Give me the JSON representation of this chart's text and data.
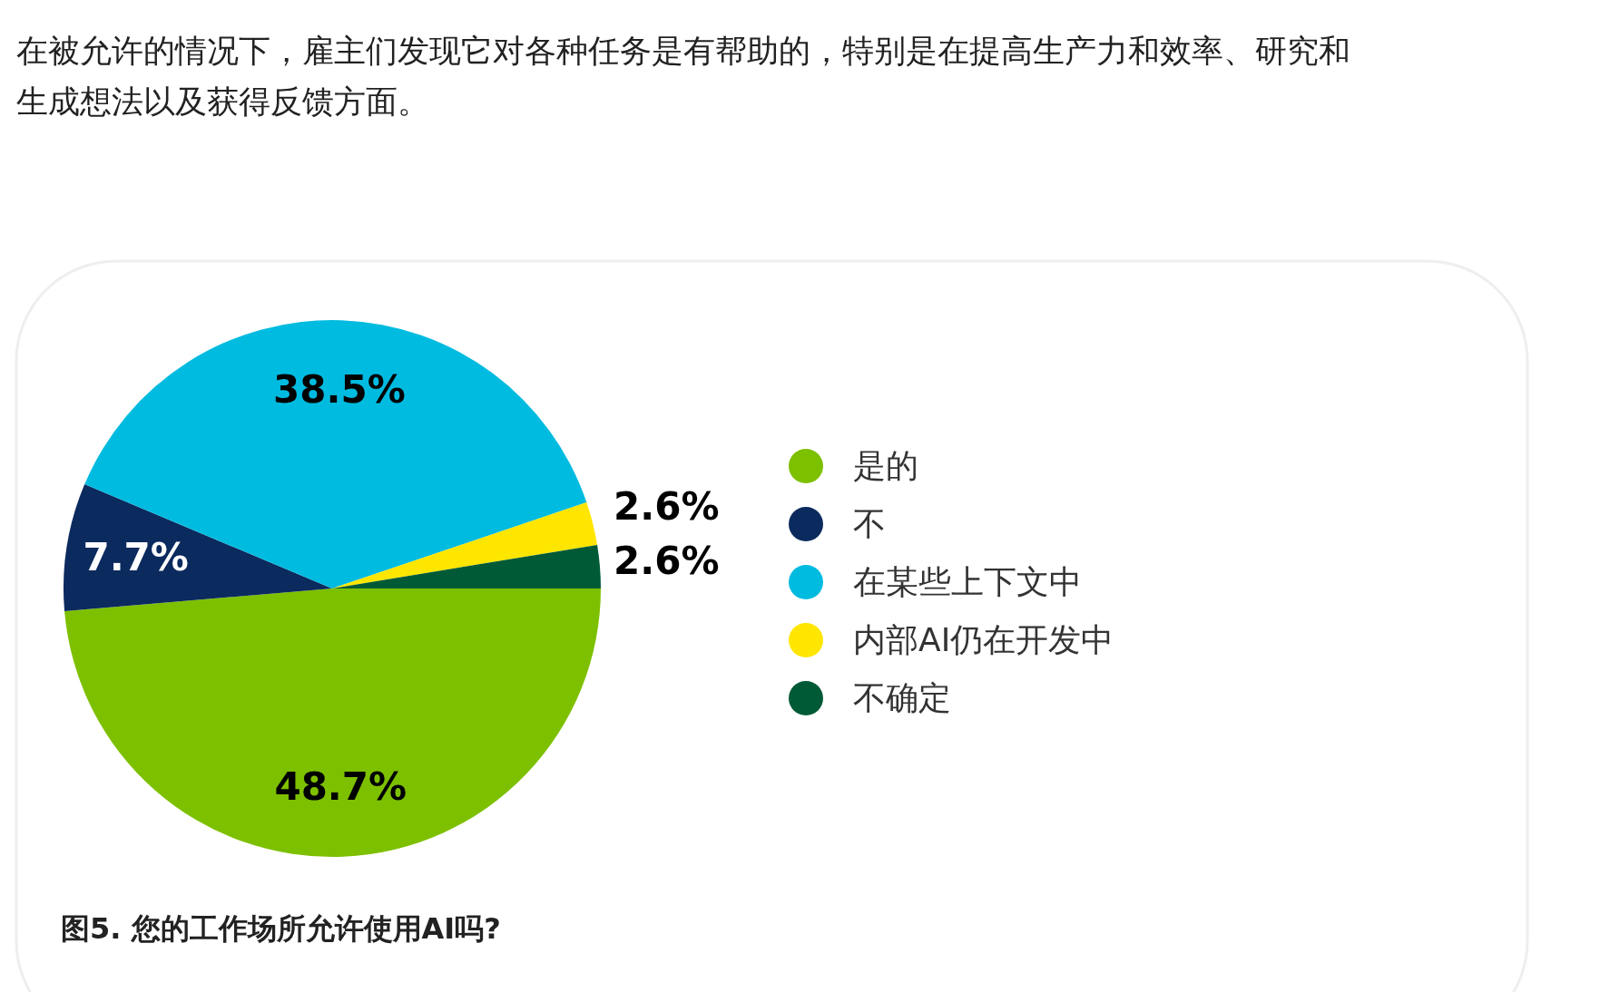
{
  "chart_data": {
    "type": "pie",
    "title": "图5. 您的工作场所允许使用AI吗?",
    "annotations": [
      "在被允许的情况下，雇主们发现它对各种任务是有帮助的，特别是在提高生产力和效率、研究和生成想法以及获得反馈方面。"
    ],
    "categories": [
      "是的",
      "不",
      "在某些上下文中",
      "内部AI仍在开发中",
      "不确定"
    ],
    "values": [
      48.7,
      7.7,
      38.5,
      2.6,
      2.6
    ],
    "value_labels": [
      "48.7%",
      "7.7%",
      "38.5%",
      "2.6%",
      "2.6%"
    ],
    "colors": [
      "#7dc000",
      "#0b2a5e",
      "#00bbe0",
      "#ffe600",
      "#005a36"
    ],
    "legend": "right"
  }
}
